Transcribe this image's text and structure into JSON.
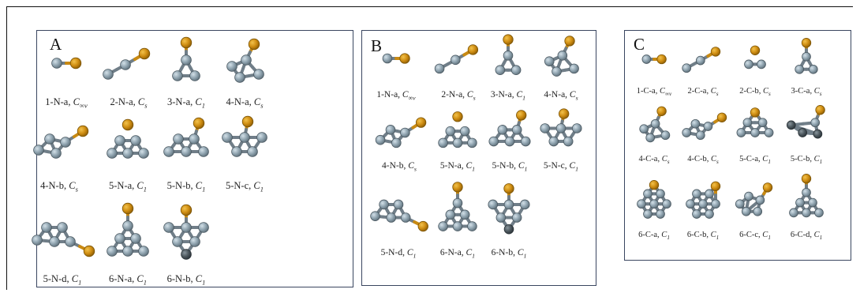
{
  "panels": [
    {
      "id": "A",
      "letter": "A",
      "structures": [
        {
          "id": "1-N-a",
          "sym": "C",
          "sub": "∞v",
          "shape": "dimer"
        },
        {
          "id": "2-N-a",
          "sym": "C",
          "sub": "s",
          "shape": "chain3"
        },
        {
          "id": "3-N-a",
          "sym": "C",
          "sub": "1",
          "shape": "tri-top"
        },
        {
          "id": "4-N-a",
          "sym": "C",
          "sub": "s",
          "shape": "tri-side"
        },
        {
          "id": "4-N-b",
          "sym": "C",
          "sub": "s",
          "shape": "rhomb-tail"
        },
        {
          "id": "5-N-a",
          "sym": "C",
          "sub": "1",
          "shape": "trap-float"
        },
        {
          "id": "5-N-b",
          "sym": "C",
          "sub": "1",
          "shape": "trap-top"
        },
        {
          "id": "5-N-c",
          "sym": "C",
          "sub": "1",
          "shape": "trap-down"
        },
        {
          "id": "5-N-d",
          "sym": "C",
          "sub": "1",
          "shape": "trap-tail"
        },
        {
          "id": "6-N-a",
          "sym": "C",
          "sub": "1",
          "shape": "pyr-top"
        },
        {
          "id": "6-N-b",
          "sym": "C",
          "sub": "1",
          "shape": "hex-top"
        }
      ]
    },
    {
      "id": "B",
      "letter": "B",
      "structures": [
        {
          "id": "1-N-a",
          "sym": "C",
          "sub": "∞v",
          "shape": "dimer"
        },
        {
          "id": "2-N-a",
          "sym": "C",
          "sub": "s",
          "shape": "chain3"
        },
        {
          "id": "3-N-a",
          "sym": "C",
          "sub": "1",
          "shape": "tri-top"
        },
        {
          "id": "4-N-a",
          "sym": "C",
          "sub": "s",
          "shape": "tri-side"
        },
        {
          "id": "4-N-b",
          "sym": "C",
          "sub": "s",
          "shape": "rhomb-tail"
        },
        {
          "id": "5-N-a",
          "sym": "C",
          "sub": "1",
          "shape": "trap-float"
        },
        {
          "id": "5-N-b",
          "sym": "C",
          "sub": "1",
          "shape": "trap-top"
        },
        {
          "id": "5-N-c",
          "sym": "C",
          "sub": "1",
          "shape": "trap-down"
        },
        {
          "id": "5-N-d",
          "sym": "C",
          "sub": "1",
          "shape": "trap-tail"
        },
        {
          "id": "6-N-a",
          "sym": "C",
          "sub": "1",
          "shape": "pyr-top"
        },
        {
          "id": "6-N-b",
          "sym": "C",
          "sub": "1",
          "shape": "hex-top"
        }
      ]
    },
    {
      "id": "C",
      "letter": "C",
      "structures": [
        {
          "id": "1-C-a",
          "sym": "C",
          "sub": "∞v",
          "shape": "dimer"
        },
        {
          "id": "2-C-a",
          "sym": "C",
          "sub": "s",
          "shape": "chain3"
        },
        {
          "id": "2-C-b",
          "sym": "C",
          "sub": "s",
          "shape": "float-dimer"
        },
        {
          "id": "3-C-a",
          "sym": "C",
          "sub": "s",
          "shape": "tri-top"
        },
        {
          "id": "4-C-a",
          "sym": "C",
          "sub": "s",
          "shape": "tri-side"
        },
        {
          "id": "4-C-b",
          "sym": "C",
          "sub": "s",
          "shape": "rhomb-tail"
        },
        {
          "id": "5-C-a",
          "sym": "C",
          "sub": "1",
          "shape": "bridge"
        },
        {
          "id": "5-C-b",
          "sym": "C",
          "sub": "1",
          "shape": "flat-dark"
        },
        {
          "id": "6-C-a",
          "sym": "C",
          "sub": "1",
          "shape": "hex-bridge"
        },
        {
          "id": "6-C-b",
          "sym": "C",
          "sub": "1",
          "shape": "hex-corner"
        },
        {
          "id": "6-C-c",
          "sym": "C",
          "sub": "1",
          "shape": "trap-tail-up"
        },
        {
          "id": "6-C-d",
          "sym": "C",
          "sub": "1",
          "shape": "pyr-top"
        }
      ]
    }
  ]
}
